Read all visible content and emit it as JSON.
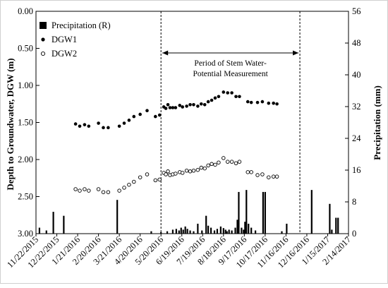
{
  "chart_data": {
    "type": "scatter",
    "x_axis": {
      "tick_labels": [
        "11/22/2015",
        "12/22/2015",
        "1/21/2016",
        "2/20/2016",
        "3/21/2016",
        "4/20/2016",
        "5/20/2016",
        "6/19/2016",
        "7/19/2016",
        "8/18/2016",
        "9/17/2016",
        "10/17/2016",
        "11/16/2016",
        "12/16/2016",
        "1/15/2017",
        "2/14/2017"
      ],
      "range": [
        "2015-11-22",
        "2017-02-14"
      ]
    },
    "y_left": {
      "label": "Depth to Groundwater, DGW (m)",
      "range": [
        0,
        3
      ],
      "inverted": true,
      "ticks": [
        "0.00",
        "0.50",
        "1.00",
        "1.50",
        "2.00",
        "2.50",
        "3.00"
      ]
    },
    "y_right": {
      "label": "Precipitation (mm)",
      "range": [
        0,
        56
      ],
      "ticks": [
        "0",
        "8",
        "16",
        "24",
        "32",
        "40",
        "48",
        "56"
      ]
    },
    "legend": {
      "placement": "top-left",
      "items": [
        {
          "label": "Precipitation (R)",
          "marker": "bar"
        },
        {
          "label": "DGW1",
          "marker": "filled-circle"
        },
        {
          "label": "DGW2",
          "marker": "open-circle"
        }
      ]
    },
    "annotation": {
      "lines": [
        "Period of Stem Water-",
        "Potential Measurement"
      ],
      "start": "2016-05-20",
      "end": "2016-12-06"
    },
    "series": [
      {
        "name": "DGW1",
        "marker": "filled-circle",
        "points": [
          [
            "2016-01-18",
            1.52
          ],
          [
            "2016-01-24",
            1.55
          ],
          [
            "2016-01-31",
            1.53
          ],
          [
            "2016-02-06",
            1.55
          ],
          [
            "2016-02-20",
            1.51
          ],
          [
            "2016-02-27",
            1.57
          ],
          [
            "2016-03-05",
            1.57
          ],
          [
            "2016-03-21",
            1.55
          ],
          [
            "2016-03-28",
            1.51
          ],
          [
            "2016-04-04",
            1.47
          ],
          [
            "2016-04-11",
            1.42
          ],
          [
            "2016-04-20",
            1.39
          ],
          [
            "2016-04-30",
            1.34
          ],
          [
            "2016-05-12",
            1.42
          ],
          [
            "2016-05-18",
            1.4
          ],
          [
            "2016-05-24",
            1.29
          ],
          [
            "2016-05-27",
            1.31
          ],
          [
            "2016-05-30",
            1.26
          ],
          [
            "2016-06-02",
            1.3
          ],
          [
            "2016-06-06",
            1.3
          ],
          [
            "2016-06-10",
            1.3
          ],
          [
            "2016-06-16",
            1.27
          ],
          [
            "2016-06-20",
            1.29
          ],
          [
            "2016-06-26",
            1.28
          ],
          [
            "2016-07-01",
            1.26
          ],
          [
            "2016-07-06",
            1.26
          ],
          [
            "2016-07-12",
            1.28
          ],
          [
            "2016-07-17",
            1.25
          ],
          [
            "2016-07-22",
            1.26
          ],
          [
            "2016-07-27",
            1.22
          ],
          [
            "2016-08-01",
            1.2
          ],
          [
            "2016-08-06",
            1.17
          ],
          [
            "2016-08-11",
            1.15
          ],
          [
            "2016-08-18",
            1.09
          ],
          [
            "2016-08-24",
            1.1
          ],
          [
            "2016-08-30",
            1.1
          ],
          [
            "2016-09-05",
            1.15
          ],
          [
            "2016-09-10",
            1.15
          ],
          [
            "2016-09-22",
            1.22
          ],
          [
            "2016-09-27",
            1.23
          ],
          [
            "2016-10-06",
            1.23
          ],
          [
            "2016-10-13",
            1.22
          ],
          [
            "2016-10-22",
            1.24
          ],
          [
            "2016-10-29",
            1.24
          ],
          [
            "2016-11-03",
            1.25
          ]
        ]
      },
      {
        "name": "DGW2",
        "marker": "open-circle",
        "points": [
          [
            "2016-01-18",
            2.4
          ],
          [
            "2016-01-24",
            2.42
          ],
          [
            "2016-01-31",
            2.4
          ],
          [
            "2016-02-06",
            2.42
          ],
          [
            "2016-02-20",
            2.4
          ],
          [
            "2016-02-27",
            2.44
          ],
          [
            "2016-03-05",
            2.44
          ],
          [
            "2016-03-21",
            2.42
          ],
          [
            "2016-03-28",
            2.38
          ],
          [
            "2016-04-04",
            2.34
          ],
          [
            "2016-04-11",
            2.3
          ],
          [
            "2016-04-20",
            2.24
          ],
          [
            "2016-04-30",
            2.2
          ],
          [
            "2016-05-12",
            2.28
          ],
          [
            "2016-05-18",
            2.27
          ],
          [
            "2016-05-24",
            2.18
          ],
          [
            "2016-05-27",
            2.2
          ],
          [
            "2016-05-30",
            2.16
          ],
          [
            "2016-06-02",
            2.21
          ],
          [
            "2016-06-06",
            2.2
          ],
          [
            "2016-06-10",
            2.19
          ],
          [
            "2016-06-16",
            2.17
          ],
          [
            "2016-06-20",
            2.18
          ],
          [
            "2016-06-26",
            2.15
          ],
          [
            "2016-07-01",
            2.16
          ],
          [
            "2016-07-06",
            2.15
          ],
          [
            "2016-07-12",
            2.14
          ],
          [
            "2016-07-17",
            2.11
          ],
          [
            "2016-07-22",
            2.12
          ],
          [
            "2016-07-27",
            2.08
          ],
          [
            "2016-08-01",
            2.06
          ],
          [
            "2016-08-06",
            2.07
          ],
          [
            "2016-08-11",
            2.04
          ],
          [
            "2016-08-18",
            1.98
          ],
          [
            "2016-08-24",
            2.03
          ],
          [
            "2016-08-30",
            2.03
          ],
          [
            "2016-09-05",
            2.05
          ],
          [
            "2016-09-10",
            2.03
          ],
          [
            "2016-09-22",
            2.17
          ],
          [
            "2016-09-27",
            2.17
          ],
          [
            "2016-10-06",
            2.21
          ],
          [
            "2016-10-13",
            2.2
          ],
          [
            "2016-10-22",
            2.24
          ],
          [
            "2016-10-29",
            2.23
          ],
          [
            "2016-11-03",
            2.23
          ]
        ]
      },
      {
        "name": "Precipitation (R)",
        "marker": "bar",
        "points": [
          [
            "2015-11-27",
            1.5
          ],
          [
            "2015-12-07",
            0.8
          ],
          [
            "2015-12-17",
            5.5
          ],
          [
            "2016-01-01",
            4.5
          ],
          [
            "2016-03-18",
            8.5
          ],
          [
            "2016-05-06",
            0.6
          ],
          [
            "2016-05-20",
            0.4
          ],
          [
            "2016-05-29",
            0.6
          ],
          [
            "2016-06-06",
            1.0
          ],
          [
            "2016-06-11",
            1.2
          ],
          [
            "2016-06-15",
            0.8
          ],
          [
            "2016-06-18",
            1.5
          ],
          [
            "2016-06-21",
            1.0
          ],
          [
            "2016-06-24",
            1.8
          ],
          [
            "2016-06-27",
            1.2
          ],
          [
            "2016-07-01",
            0.8
          ],
          [
            "2016-07-06",
            0.6
          ],
          [
            "2016-07-12",
            2.5
          ],
          [
            "2016-07-18",
            0.8
          ],
          [
            "2016-07-24",
            4.5
          ],
          [
            "2016-07-27",
            2.0
          ],
          [
            "2016-07-31",
            1.5
          ],
          [
            "2016-08-05",
            0.8
          ],
          [
            "2016-08-09",
            1.2
          ],
          [
            "2016-08-14",
            1.8
          ],
          [
            "2016-08-18",
            1.4
          ],
          [
            "2016-08-21",
            1.0
          ],
          [
            "2016-08-23",
            0.6
          ],
          [
            "2016-08-26",
            1.0
          ],
          [
            "2016-08-30",
            0.8
          ],
          [
            "2016-09-04",
            1.5
          ],
          [
            "2016-09-07",
            3.5
          ],
          [
            "2016-09-09",
            10.5
          ],
          [
            "2016-09-13",
            1.5
          ],
          [
            "2016-09-16",
            1.0
          ],
          [
            "2016-09-18",
            3.0
          ],
          [
            "2016-09-20",
            11.0
          ],
          [
            "2016-09-23",
            2.5
          ],
          [
            "2016-09-27",
            1.5
          ],
          [
            "2016-10-03",
            0.8
          ],
          [
            "2016-10-14",
            10.5
          ],
          [
            "2016-10-17",
            10.5
          ],
          [
            "2016-11-10",
            0.6
          ],
          [
            "2016-11-17",
            2.5
          ],
          [
            "2016-12-23",
            11.0
          ],
          [
            "2017-01-18",
            7.5
          ],
          [
            "2017-01-21",
            1.0
          ],
          [
            "2017-01-27",
            4.0
          ],
          [
            "2017-01-30",
            4.0
          ]
        ]
      }
    ]
  }
}
